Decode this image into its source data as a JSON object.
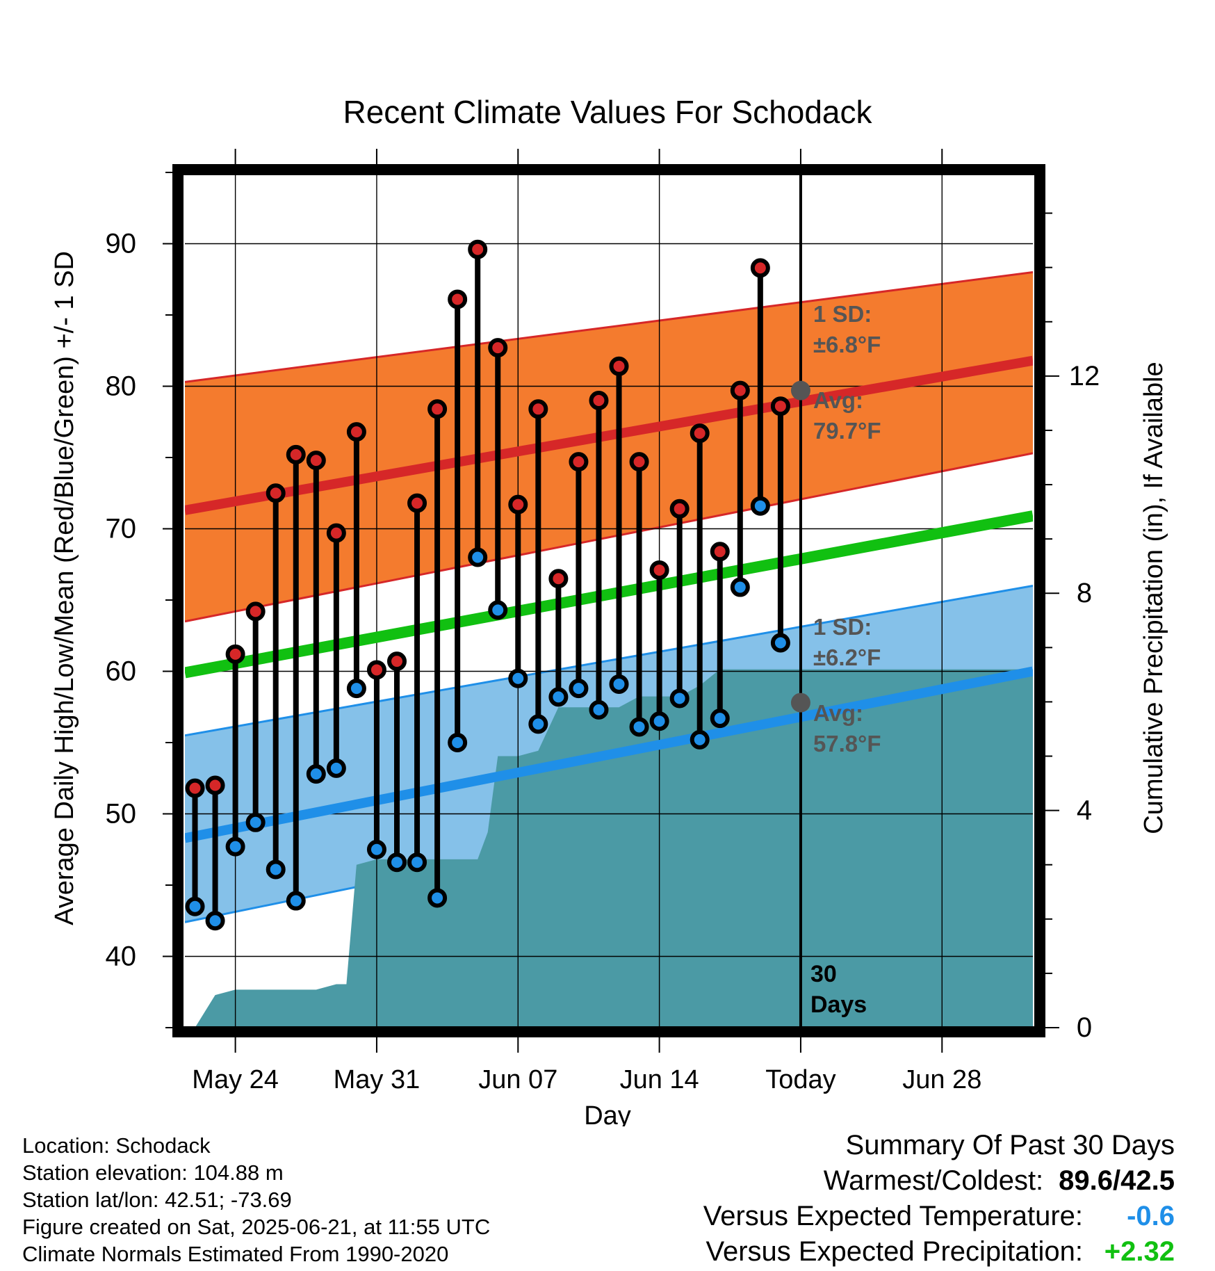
{
  "chart_data": {
    "type": "line",
    "title": "Recent Climate Values For Schodack",
    "xlabel": "Day",
    "ylabel": "Average Daily High/Low/Mean (Red/Blue/Green) +/- 1 SD",
    "y2label": "Cumulative Precipitation (in), If Available",
    "ylim": [
      35,
      95
    ],
    "y2lim": [
      0,
      15.75
    ],
    "xlim": [
      -30.5,
      11.5
    ],
    "yticks": [
      40,
      50,
      60,
      70,
      80,
      90
    ],
    "y2ticks": [
      0,
      4,
      8,
      12
    ],
    "xtick_positions": [
      -28,
      -21,
      -14,
      -7,
      0,
      7
    ],
    "xtick_labels": [
      "May 24",
      "May 31",
      "Jun 07",
      "Jun 14",
      "Today",
      "Jun 28"
    ],
    "grid": true,
    "colors": {
      "high_band": "#f47b2e",
      "high_line": "#d62728",
      "low_band": "#85c1e9",
      "low_line": "#1f8fe8",
      "mean_line": "#11c011",
      "precip": "#4b9aa5",
      "high_marker": "#d62728",
      "low_marker": "#1f8fe8"
    },
    "normals": {
      "x": [
        -30.5,
        11.5
      ],
      "high_avg": [
        71.3,
        81.8
      ],
      "high_upper": [
        80.3,
        88.0
      ],
      "high_lower": [
        63.5,
        75.3
      ],
      "mean_avg": [
        59.9,
        70.9
      ],
      "low_avg": [
        48.3,
        60.0
      ],
      "low_upper": [
        55.5,
        66.0
      ],
      "low_lower": [
        42.4,
        54.6
      ]
    },
    "series": [
      {
        "name": "Daily High",
        "x": [
          -30,
          -29,
          -28,
          -27,
          -26,
          -25,
          -24,
          -23,
          -22,
          -21,
          -20,
          -19,
          -18,
          -17,
          -16,
          -15,
          -14,
          -13,
          -12,
          -11,
          -10,
          -9,
          -8,
          -7,
          -6,
          -5,
          -4,
          -3,
          -2,
          -1
        ],
        "values": [
          51.8,
          52.0,
          61.2,
          64.2,
          72.5,
          75.2,
          74.8,
          69.7,
          76.8,
          60.1,
          60.7,
          71.8,
          78.4,
          86.1,
          89.6,
          82.7,
          71.7,
          78.4,
          66.5,
          74.7,
          79.0,
          81.4,
          74.7,
          67.1,
          71.4,
          76.7,
          68.4,
          79.7,
          88.3,
          78.6
        ]
      },
      {
        "name": "Daily Low",
        "x": [
          -30,
          -29,
          -28,
          -27,
          -26,
          -25,
          -24,
          -23,
          -22,
          -21,
          -20,
          -19,
          -18,
          -17,
          -16,
          -15,
          -14,
          -13,
          -12,
          -11,
          -10,
          -9,
          -8,
          -7,
          -6,
          -5,
          -4,
          -3,
          -2,
          -1
        ],
        "values": [
          43.5,
          42.5,
          47.7,
          49.4,
          46.1,
          43.9,
          52.8,
          53.2,
          58.8,
          47.5,
          46.6,
          46.6,
          44.1,
          55.0,
          68.0,
          64.3,
          59.5,
          56.3,
          58.2,
          58.8,
          57.3,
          59.1,
          56.1,
          56.5,
          58.1,
          55.2,
          56.7,
          65.9,
          71.6,
          62.0
        ]
      },
      {
        "name": "Cumulative Precipitation",
        "x": [
          -30.5,
          -30,
          -29,
          -28,
          -27,
          -26,
          -25,
          -24,
          -23,
          -22.5,
          -22,
          -21,
          -20,
          -19,
          -18,
          -17,
          -16,
          -15.5,
          -15,
          -14,
          -13,
          -12,
          -11,
          -10,
          -9,
          -8,
          -7,
          -6,
          -5,
          -4,
          -3,
          -2,
          -1,
          0,
          1,
          2,
          3,
          4,
          5,
          6,
          7,
          8,
          9,
          10,
          11.5
        ],
        "values": [
          0,
          0,
          0.6,
          0.7,
          0.7,
          0.7,
          0.7,
          0.7,
          0.8,
          0.8,
          3.0,
          3.1,
          3.1,
          3.1,
          3.1,
          3.1,
          3.1,
          3.6,
          5.0,
          5.0,
          5.1,
          5.9,
          5.9,
          5.9,
          5.9,
          6.1,
          6.1,
          6.1,
          6.3,
          6.6,
          6.6,
          6.6,
          6.6,
          6.6,
          6.6,
          6.6,
          6.6,
          6.6,
          6.6,
          6.6,
          6.6,
          6.6,
          6.6,
          6.6,
          6.6
        ]
      }
    ],
    "annotations": {
      "high_sd_label": "1 SD:",
      "high_sd_value": "±6.8°F",
      "high_avg_label": "Avg:",
      "high_avg_value": "79.7°F",
      "high_avg_point": 79.7,
      "low_sd_label": "1 SD:",
      "low_sd_value": "±6.2°F",
      "low_avg_label": "Avg:",
      "low_avg_value": "57.8°F",
      "low_avg_point": 57.8,
      "days_number": "30",
      "days_word": "Days"
    }
  },
  "footer": {
    "location": "Location: Schodack",
    "elevation": "Station elevation: 104.88 m",
    "latlon": "Station lat/lon: 42.51; -73.69",
    "created": "Figure created on Sat, 2025-06-21, at 11:55 UTC",
    "normals": "Climate Normals Estimated From 1990-2020"
  },
  "summary": {
    "heading": "Summary Of Past 30 Days",
    "warmest_label": "Warmest/Coldest:",
    "warmest_value": "89.6/42.5",
    "temp_label": "Versus Expected Temperature:",
    "temp_value": "-0.6",
    "precip_label": "Versus Expected Precipitation:",
    "precip_value": "+2.32"
  }
}
